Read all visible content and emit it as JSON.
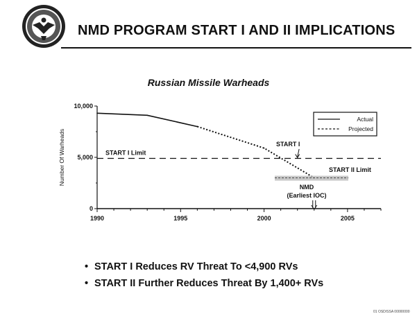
{
  "header": {
    "title": "NMD PROGRAM START I AND  II IMPLICATIONS"
  },
  "seal": {
    "icon": "department-of-defense-seal-icon"
  },
  "chart_data": {
    "type": "line",
    "title": "Russian Missile Warheads",
    "xlabel": "",
    "ylabel": "Number Of Warheads",
    "xlim": [
      1990,
      2007
    ],
    "ylim": [
      0,
      10000
    ],
    "x_ticks": [
      1990,
      1995,
      2000,
      2005
    ],
    "y_ticks": [
      0,
      5000,
      10000
    ],
    "y_tick_labels": [
      "0",
      "5,000",
      "10,000"
    ],
    "grid": false,
    "legend_position": "top-right",
    "series": [
      {
        "name": "Actual",
        "style": "solid",
        "points": [
          [
            1990,
            9300
          ],
          [
            1993,
            9100
          ],
          [
            1996,
            8000
          ]
        ]
      },
      {
        "name": "Projected",
        "style": "dotted",
        "points": [
          [
            1996,
            8000
          ],
          [
            2000,
            5900
          ],
          [
            2003,
            3000
          ]
        ]
      }
    ],
    "reference_lines": [
      {
        "label": "START I Limit",
        "y": 4900,
        "style": "dashed"
      }
    ],
    "annotations": [
      {
        "label": "START I",
        "x": 2002,
        "y": 4900,
        "label_x": 2002.6,
        "label_y": 6200
      },
      {
        "label": "START II Limit",
        "x": 2004,
        "y": 3000,
        "label_x": 2005.6,
        "label_y": 3700
      },
      {
        "label": "NMD",
        "label2": "(Earliest IOC)",
        "x": 2003,
        "y": 0,
        "label_x": 2003,
        "label_y": 2100
      }
    ]
  },
  "bullets": [
    "START I Reduces RV Threat To <4,900 RVs",
    "START II Further Reduces Threat By 1,400+ RVs"
  ],
  "footer": {
    "note": "01 OSD/SSA 00000000"
  }
}
